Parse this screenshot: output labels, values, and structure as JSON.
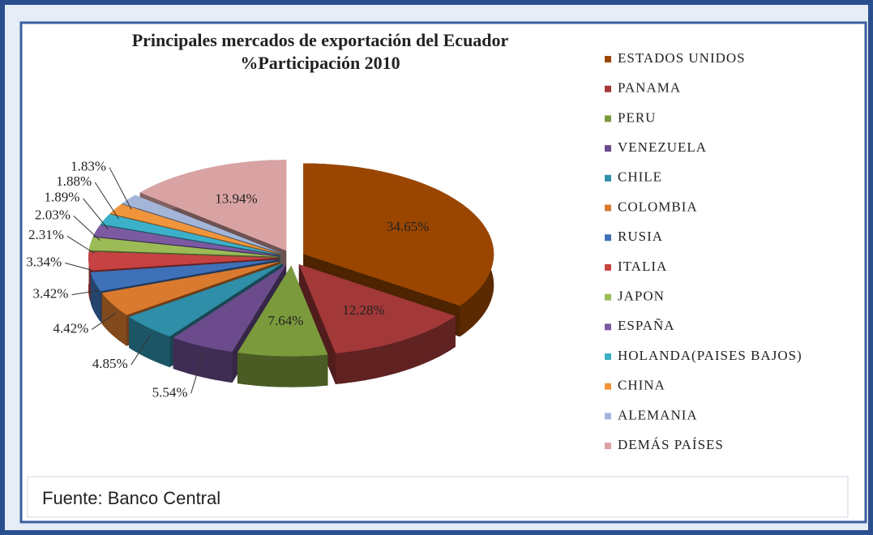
{
  "chart_data": {
    "type": "pie",
    "title": "Principales mercados de exportación del Ecuador",
    "subtitle": "%Participación 2010",
    "source": "Fuente: Banco Central",
    "categories": [
      "ESTADOS UNIDOS",
      "PANAMA",
      "PERU",
      "VENEZUELA",
      "CHILE",
      "COLOMBIA",
      "RUSIA",
      "ITALIA",
      "JAPON",
      "ESPAÑA",
      "HOLANDA(PAISES BAJOS)",
      "CHINA",
      "ALEMANIA",
      "DEMÁS PAÍSES"
    ],
    "values": [
      34.65,
      12.28,
      7.64,
      5.54,
      4.85,
      4.42,
      3.42,
      3.34,
      2.31,
      2.03,
      1.89,
      1.88,
      1.83,
      13.94
    ],
    "value_labels": [
      "34.65%",
      "12.28%",
      "7.64%",
      "5.54%",
      "4.85%",
      "4.42%",
      "3.42%",
      "3.34%",
      "2.31%",
      "2.03%",
      "1.89%",
      "1.88%",
      "1.83%",
      "13.94%"
    ],
    "colors": [
      "#9a4600",
      "#a23838",
      "#7b9a3c",
      "#6b4b8c",
      "#2f8ea8",
      "#d97a2e",
      "#3e71b8",
      "#c74242",
      "#9bbb57",
      "#7b5aa2",
      "#3cb0c9",
      "#f0953b",
      "#a3b6d9",
      "#d9a3a3"
    ]
  }
}
